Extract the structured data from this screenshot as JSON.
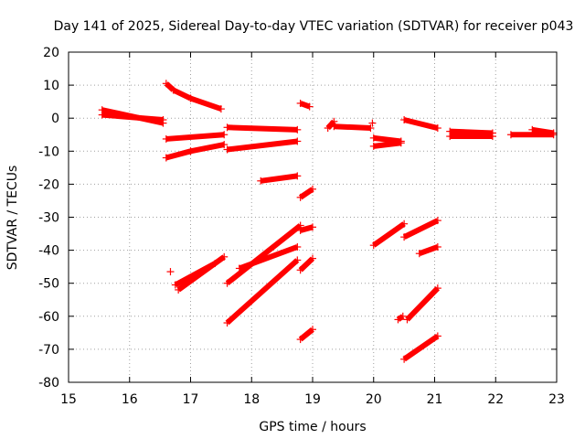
{
  "chart_data": {
    "type": "scatter",
    "title": "Day 141 of 2025, Sidereal Day-to-day VTEC variation (SDTVAR) for receiver p043",
    "xlabel": "GPS time / hours",
    "ylabel": "SDTVAR / TECUs",
    "xlim": [
      15,
      23
    ],
    "ylim": [
      -80,
      20
    ],
    "xticks": [
      15,
      16,
      17,
      18,
      19,
      20,
      21,
      22,
      23
    ],
    "yticks": [
      20,
      10,
      0,
      -10,
      -20,
      -30,
      -40,
      -50,
      -60,
      -70,
      -80
    ],
    "grid": true,
    "series_color": "#ff0000",
    "marker": "plus",
    "tracks": [
      {
        "x": [
          15.55,
          16.55
        ],
        "y": [
          2.5,
          -1.5
        ]
      },
      {
        "x": [
          15.55,
          16.55
        ],
        "y": [
          1.0,
          -0.5
        ]
      },
      {
        "x": [
          16.6,
          16.72
        ],
        "y": [
          10.5,
          8.5
        ]
      },
      {
        "x": [
          16.72,
          17.0
        ],
        "y": [
          8.5,
          6.0
        ]
      },
      {
        "x": [
          17.0,
          17.5
        ],
        "y": [
          6.0,
          2.8
        ]
      },
      {
        "x": [
          16.6,
          17.55
        ],
        "y": [
          -6.3,
          -5.0
        ]
      },
      {
        "x": [
          16.6,
          17.0
        ],
        "y": [
          -12.0,
          -10.0
        ]
      },
      {
        "x": [
          17.0,
          17.55
        ],
        "y": [
          -10.0,
          -8.0
        ]
      },
      {
        "x": [
          17.6,
          18.75
        ],
        "y": [
          -2.8,
          -3.5
        ]
      },
      {
        "x": [
          17.6,
          18.75
        ],
        "y": [
          -9.5,
          -7.0
        ]
      },
      {
        "x": [
          18.15,
          18.75
        ],
        "y": [
          -19.0,
          -17.5
        ]
      },
      {
        "x": [
          18.8,
          18.95
        ],
        "y": [
          4.5,
          3.5
        ]
      },
      {
        "x": [
          18.8,
          19.0
        ],
        "y": [
          -24.0,
          -21.5
        ]
      },
      {
        "x": [
          18.8,
          19.0
        ],
        "y": [
          -34.0,
          -33.0
        ]
      },
      {
        "x": [
          18.8,
          19.0
        ],
        "y": [
          -46.0,
          -42.5
        ]
      },
      {
        "x": [
          18.8,
          19.0
        ],
        "y": [
          -67.0,
          -64.0
        ]
      },
      {
        "x": [
          19.25,
          19.35
        ],
        "y": [
          -3.0,
          -1.0
        ]
      },
      {
        "x": [
          19.35,
          19.95
        ],
        "y": [
          -2.5,
          -3.0
        ]
      },
      {
        "x": [
          20.0,
          20.45
        ],
        "y": [
          -6.0,
          -7.0
        ]
      },
      {
        "x": [
          20.0,
          20.45
        ],
        "y": [
          -8.5,
          -7.5
        ]
      },
      {
        "x": [
          20.5,
          21.05
        ],
        "y": [
          -0.5,
          -3.0
        ]
      },
      {
        "x": [
          21.25,
          21.95
        ],
        "y": [
          -4.0,
          -4.5
        ]
      },
      {
        "x": [
          21.25,
          21.95
        ],
        "y": [
          -5.5,
          -5.5
        ]
      },
      {
        "x": [
          22.25,
          22.95
        ],
        "y": [
          -5.0,
          -5.0
        ]
      },
      {
        "x": [
          22.6,
          22.95
        ],
        "y": [
          -3.5,
          -4.5
        ]
      },
      {
        "x": [
          16.8,
          17.55
        ],
        "y": [
          -52.0,
          -42.0
        ]
      },
      {
        "x": [
          16.75,
          17.4
        ],
        "y": [
          -50.5,
          -44.0
        ]
      },
      {
        "x": [
          17.6,
          18.8
        ],
        "y": [
          -50.0,
          -32.5
        ]
      },
      {
        "x": [
          17.8,
          18.75
        ],
        "y": [
          -45.5,
          -39.0
        ]
      },
      {
        "x": [
          17.6,
          18.75
        ],
        "y": [
          -62.0,
          -43.0
        ]
      },
      {
        "x": [
          20.0,
          20.5
        ],
        "y": [
          -38.5,
          -32.0
        ]
      },
      {
        "x": [
          20.5,
          21.05
        ],
        "y": [
          -36.0,
          -31.0
        ]
      },
      {
        "x": [
          20.75,
          21.05
        ],
        "y": [
          -41.0,
          -39.0
        ]
      },
      {
        "x": [
          20.55,
          21.05
        ],
        "y": [
          -61.0,
          -51.5
        ]
      },
      {
        "x": [
          20.4,
          20.48
        ],
        "y": [
          -61.0,
          -60.0
        ]
      },
      {
        "x": [
          20.5,
          21.05
        ],
        "y": [
          -73.0,
          -66.0
        ]
      }
    ],
    "points": [
      {
        "x": 16.67,
        "y": -46.5
      },
      {
        "x": 19.98,
        "y": -1.5
      }
    ]
  }
}
